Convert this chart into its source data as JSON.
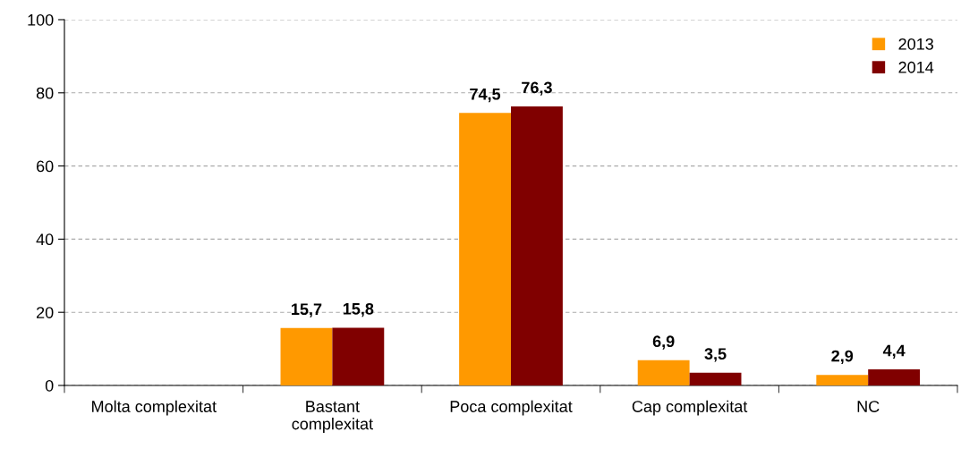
{
  "chart_data": {
    "type": "bar",
    "categories": [
      "Molta complexitat",
      "Bastant\ncomplexitat",
      "Poca complexitat",
      "Cap complexitat",
      "NC"
    ],
    "series": [
      {
        "name": "2013",
        "color": "#ff9900",
        "values": [
          null,
          15.7,
          74.5,
          6.9,
          2.9
        ],
        "value_labels": [
          null,
          "15,7",
          "74,5",
          "6,9",
          "2,9"
        ]
      },
      {
        "name": "2014",
        "color": "#800000",
        "values": [
          null,
          15.8,
          76.3,
          3.5,
          4.4
        ],
        "value_labels": [
          null,
          "15,8",
          "76,3",
          "3,5",
          "4,4"
        ]
      }
    ],
    "ylim": [
      0,
      100
    ],
    "yticks": [
      0,
      20,
      40,
      60,
      80,
      100
    ],
    "grid": "y",
    "legend": "top right"
  }
}
